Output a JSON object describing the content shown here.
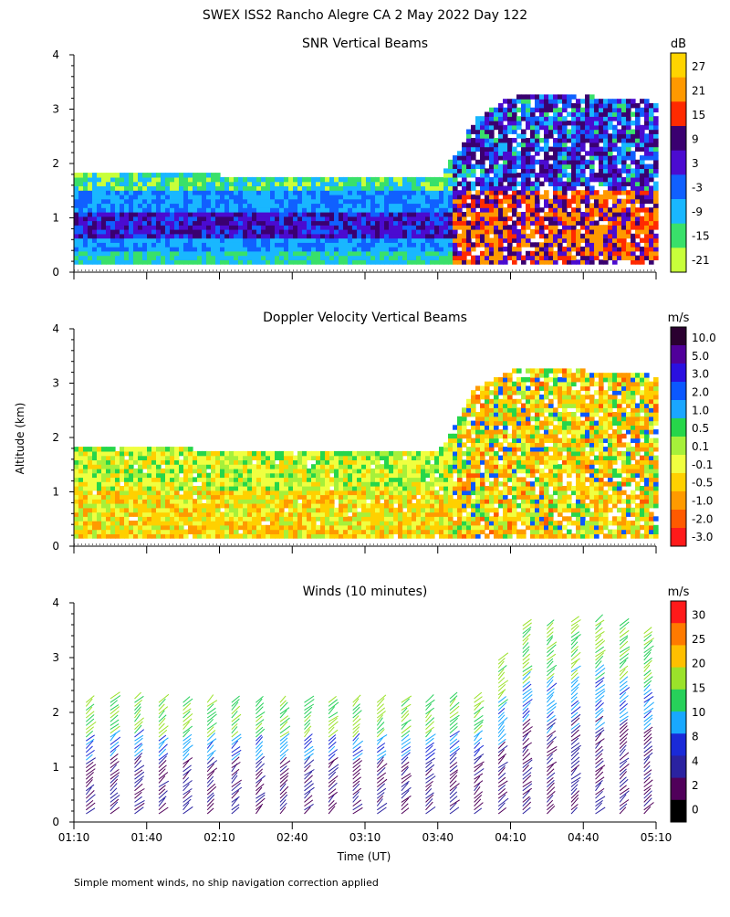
{
  "title": "SWEX ISS2 Rancho Alegre CA   2 May 2022 Day 122",
  "shared_ylabel": "Altitude (km)",
  "xlabel": "Time (UT)",
  "footnote": "Simple moment winds, no ship navigation correction applied",
  "x_ticks": [
    "01:10",
    "01:40",
    "02:10",
    "02:40",
    "03:10",
    "03:40",
    "04:10",
    "04:40",
    "05:10"
  ],
  "y_ticks": [
    "0",
    "1",
    "2",
    "3",
    "4"
  ],
  "chart_data": [
    {
      "type": "heatmap",
      "title": "SNR Vertical Beams",
      "unit_label": "dB",
      "x_range": [
        "01:10",
        "05:10"
      ],
      "ylim": [
        0,
        4
      ],
      "colorbar": {
        "labels": [
          "27",
          "21",
          "15",
          "9",
          "3",
          "-3",
          "-9",
          "-15",
          "-21"
        ],
        "colors": [
          "#ffd400",
          "#ff9900",
          "#ff2a00",
          "#3a0070",
          "#4b0bd0",
          "#1060ff",
          "#19b7ff",
          "#39e06a",
          "#c8ff3a"
        ]
      },
      "boundary_km": {
        "times": [
          "01:10",
          "01:40",
          "02:10",
          "02:40",
          "03:10",
          "03:40",
          "03:55",
          "04:10",
          "04:40",
          "05:10"
        ],
        "top": [
          1.8,
          1.8,
          1.75,
          1.7,
          1.7,
          1.7,
          2.8,
          3.2,
          3.2,
          3.1
        ],
        "bottom": [
          0.15,
          0.15,
          0.15,
          0.15,
          0.15,
          0.15,
          0.15,
          0.15,
          0.15,
          0.15
        ]
      }
    },
    {
      "type": "heatmap",
      "title": "Doppler Velocity Vertical Beams",
      "unit_label": "m/s",
      "x_range": [
        "01:10",
        "05:10"
      ],
      "ylim": [
        0,
        4
      ],
      "colorbar": {
        "labels": [
          "10.0",
          "5.0",
          "3.0",
          "2.0",
          "1.0",
          "0.5",
          "0.1",
          "-0.1",
          "-0.5",
          "-1.0",
          "-2.0",
          "-3.0"
        ],
        "colors": [
          "#2a0030",
          "#50009a",
          "#2a10e0",
          "#0b58ff",
          "#1aa6ff",
          "#26d64a",
          "#a6f03a",
          "#f0ff40",
          "#ffd000",
          "#ff9a00",
          "#ff5a00",
          "#ff1a1a"
        ]
      },
      "boundary_km": {
        "times": [
          "01:10",
          "01:40",
          "02:10",
          "02:40",
          "03:10",
          "03:40",
          "03:55",
          "04:10",
          "04:40",
          "05:10"
        ],
        "top": [
          1.8,
          1.8,
          1.72,
          1.7,
          1.72,
          1.72,
          2.9,
          3.2,
          3.2,
          3.1
        ],
        "bottom": [
          0.15,
          0.15,
          0.15,
          0.15,
          0.15,
          0.15,
          0.15,
          0.15,
          0.15,
          0.15
        ]
      }
    },
    {
      "type": "wind_barbs",
      "title": "Winds (10 minutes)",
      "unit_label": "m/s",
      "x_range": [
        "01:10",
        "05:10"
      ],
      "ylim": [
        0,
        4
      ],
      "colorbar": {
        "labels": [
          "30",
          "25",
          "20",
          "15",
          "10",
          "8",
          "4",
          "2",
          "0"
        ],
        "colors": [
          "#ff1a1a",
          "#ff7a00",
          "#ffbf00",
          "#9be22a",
          "#27d05a",
          "#18a8ff",
          "#1a2ad8",
          "#2a22a0",
          "#50005a",
          "#000000"
        ]
      },
      "profile_times": [
        "01:15",
        "01:25",
        "01:35",
        "01:45",
        "01:55",
        "02:05",
        "02:15",
        "02:25",
        "02:35",
        "02:45",
        "02:55",
        "03:05",
        "03:15",
        "03:25",
        "03:35",
        "03:45",
        "03:55",
        "04:05",
        "04:15",
        "04:25",
        "04:35",
        "04:45",
        "04:55",
        "05:05"
      ],
      "profile_top_km": [
        2.2,
        2.3,
        2.3,
        2.2,
        2.2,
        2.2,
        2.2,
        2.2,
        2.2,
        2.2,
        2.2,
        2.2,
        2.2,
        2.2,
        2.2,
        2.3,
        2.3,
        3.0,
        3.6,
        3.6,
        3.7,
        3.7,
        3.6,
        3.5
      ]
    }
  ]
}
